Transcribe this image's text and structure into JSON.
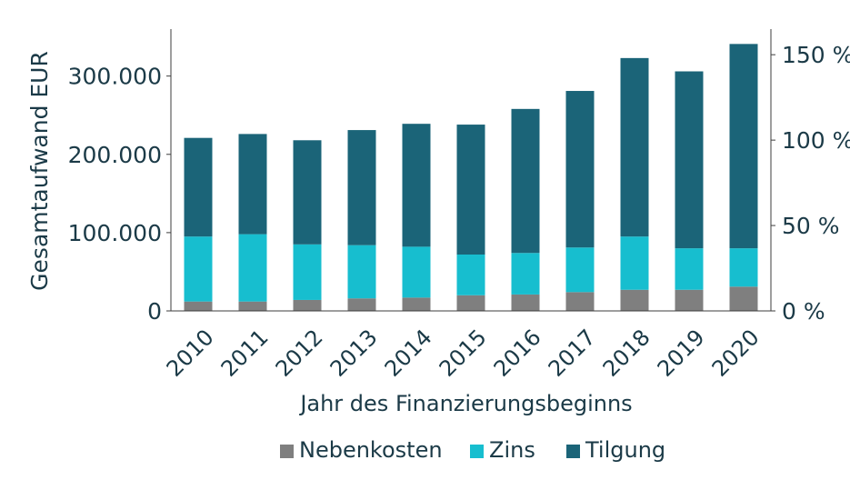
{
  "chart_data": {
    "type": "bar",
    "stacked": true,
    "categories": [
      "2010",
      "2011",
      "2012",
      "2013",
      "2014",
      "2015",
      "2016",
      "2017",
      "2018",
      "2019",
      "2020"
    ],
    "series": [
      {
        "name": "Nebenkosten",
        "color": "#7f7f7f",
        "values": [
          12000,
          12000,
          14000,
          16000,
          17000,
          20000,
          21000,
          24000,
          27000,
          27000,
          31000
        ]
      },
      {
        "name": "Zins",
        "color": "#17becf",
        "values": [
          83000,
          86000,
          71000,
          68000,
          65000,
          52000,
          53000,
          57000,
          68000,
          53000,
          49000
        ]
      },
      {
        "name": "Tilgung",
        "color": "#1b6478",
        "values": [
          126000,
          128000,
          133000,
          147000,
          157000,
          166000,
          184000,
          200000,
          228000,
          226000,
          261000
        ]
      }
    ],
    "xlabel": "Jahr des Finanzierungsbeginns",
    "ylabel": "Gesamtaufwand EUR",
    "ylim": [
      0,
      360000
    ],
    "yticks": [
      0,
      100000,
      200000,
      300000
    ],
    "ytick_labels": [
      "0",
      "100.000",
      "200.000",
      "300.000"
    ],
    "y2lim": [
      0,
      165
    ],
    "y2ticks": [
      0,
      50,
      100,
      150
    ],
    "y2tick_labels": [
      "0 %",
      "50 %",
      "100 %",
      "150 %"
    ],
    "legend_position": "bottom-center",
    "grid": false
  }
}
